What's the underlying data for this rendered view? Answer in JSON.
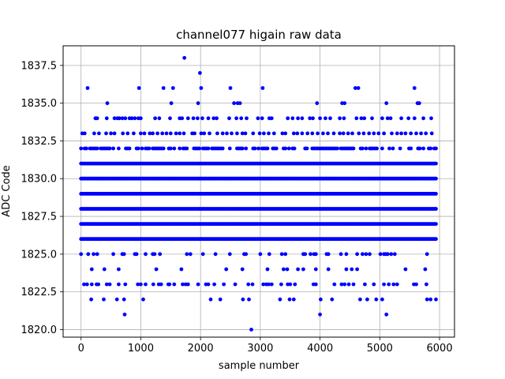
{
  "chart_data": {
    "type": "scatter",
    "title": "channel077 higain raw data",
    "xlabel": "sample number",
    "ylabel": "ADC Code",
    "xlim": [
      -300,
      6250
    ],
    "ylim": [
      1819.5,
      1838.8
    ],
    "xticks": [
      0,
      1000,
      2000,
      3000,
      4000,
      5000,
      6000
    ],
    "xtick_labels": [
      "0",
      "1000",
      "2000",
      "3000",
      "4000",
      "5000",
      "6000"
    ],
    "yticks": [
      1820.0,
      1822.5,
      1825.0,
      1827.5,
      1830.0,
      1832.5,
      1835.0,
      1837.5
    ],
    "ytick_labels": [
      "1820.0",
      "1822.5",
      "1825.0",
      "1827.5",
      "1830.0",
      "1832.5",
      "1835.0",
      "1837.5"
    ],
    "grid": true,
    "marker_color": "#0000ff",
    "sample_count": 5940,
    "levels": [
      {
        "y": 1820,
        "x": [
          2850
        ]
      },
      {
        "y": 1821,
        "x": [
          730,
          4000,
          5110
        ]
      },
      {
        "y": 1822,
        "x": [
          170,
          380,
          600,
          720,
          1040,
          2170,
          2330,
          2710,
          2810,
          3330,
          3490,
          3560,
          4010,
          4200,
          4670,
          4790,
          4940,
          5040,
          5790,
          5850,
          5940
        ]
      },
      {
        "y": 1823,
        "x": [
          50,
          100,
          180,
          260,
          290,
          430,
          480,
          630,
          740,
          950,
          1000,
          1080,
          1210,
          1300,
          1340,
          1460,
          1480,
          1560,
          1700,
          1750,
          1790,
          1960,
          2090,
          2130,
          2230,
          2390,
          2580,
          2800,
          2870,
          3050,
          3100,
          3140,
          3190,
          3350,
          3460,
          3500,
          3580,
          3890,
          3930,
          4240,
          4360,
          4410,
          4480,
          4560,
          4750,
          4900,
          5070,
          5150,
          5230,
          5290,
          5570,
          5610,
          5780
        ]
      },
      {
        "y": 1833,
        "x": [
          20,
          60,
          220,
          300,
          420,
          500,
          560,
          700,
          780,
          880,
          1000,
          1060,
          1150,
          1200,
          1280,
          1360,
          1430,
          1500,
          1590,
          1650,
          1720,
          1860,
          1900,
          2010,
          2060,
          2150,
          2280,
          2370,
          2440,
          2520,
          2610,
          2700,
          2750,
          2880,
          2990,
          3060,
          3140,
          3230,
          3370,
          3420,
          3560,
          3620,
          3700,
          3790,
          3870,
          3960,
          4050,
          4130,
          4230,
          4330,
          4390,
          4470,
          4540,
          4650,
          4730,
          4820,
          4900,
          4980,
          5070,
          5200,
          5290,
          5360,
          5430,
          5520,
          5610,
          5690,
          5770,
          5870
        ]
      },
      {
        "y": 1834,
        "x": [
          240,
          270,
          430,
          560,
          610,
          640,
          690,
          740,
          810,
          850,
          900,
          960,
          1000,
          1240,
          1310,
          1490,
          1650,
          1690,
          1790,
          1880,
          1950,
          2030,
          2130,
          2220,
          2270,
          2480,
          2600,
          2680,
          2770,
          2960,
          3030,
          3150,
          3190,
          3460,
          3540,
          3630,
          3700,
          3830,
          3880,
          4000,
          4090,
          4170,
          4330,
          4400,
          4610,
          4690,
          4740,
          4870,
          5040,
          5130,
          5180,
          5360,
          5480,
          5580,
          5730,
          5860
        ]
      },
      {
        "y": 1835,
        "x": [
          440,
          1510,
          1960,
          2560,
          2620,
          2660,
          3950,
          4370,
          4410,
          5110,
          5630,
          5660
        ]
      },
      {
        "y": 1836,
        "x": [
          110,
          970,
          1380,
          1540,
          2010,
          2500,
          3040,
          4590,
          4640,
          5580
        ]
      },
      {
        "y": 1837,
        "x": [
          1990
        ]
      },
      {
        "y": 1838,
        "x": [
          1730
        ]
      }
    ],
    "dense_levels": [
      1824,
      1825,
      1826,
      1827,
      1828,
      1829,
      1830,
      1831,
      1832
    ],
    "dense_level_density": {
      "1824": 0.08,
      "1825": 0.2,
      "1826": 1.0,
      "1827": 1.0,
      "1828": 1.0,
      "1829": 1.0,
      "1830": 1.0,
      "1831": 1.0,
      "1832": 0.6
    }
  }
}
